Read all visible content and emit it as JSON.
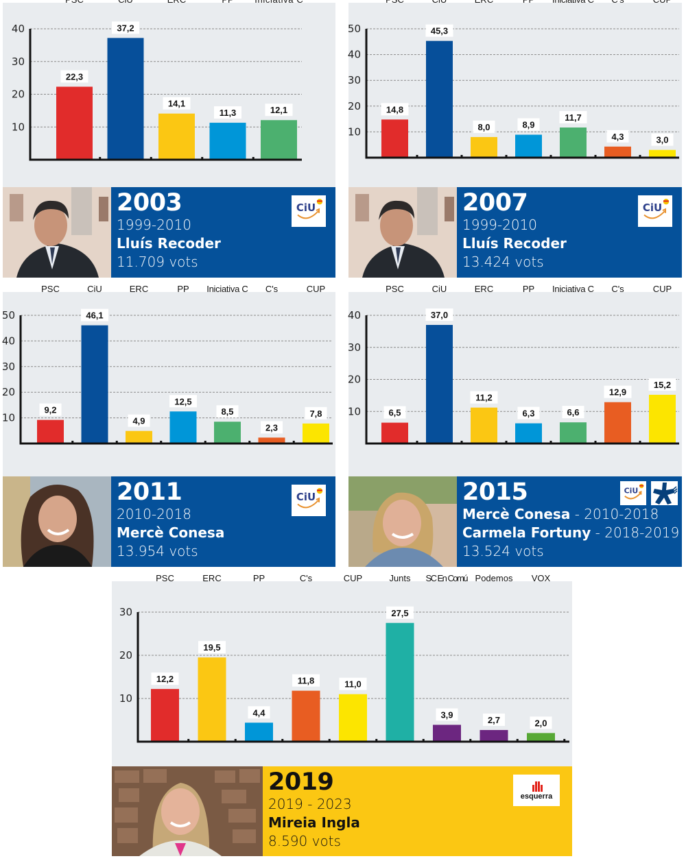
{
  "colors": {
    "PSC": "#e12c2b",
    "CiU": "#064f9a",
    "ERC": "#fbc713",
    "PP": "#0096d8",
    "Iniciativa C": "#4cb06f",
    "C's": "#e85d22",
    "CUP": "#fce500",
    "Junts": "#1fb0a5",
    "SC En Comú": "#6c2680",
    "Podemos": "#6c2680",
    "VOX": "#57a835",
    "panel_bg": "#e9ecef",
    "ciu_blue": "#05519a",
    "erc_yellow": "#fbc713"
  },
  "chart_data": [
    {
      "type": "bar",
      "title": "2003",
      "categories": [
        "PSC",
        "CiU",
        "ERC",
        "PP",
        "Iniciativa C"
      ],
      "values": [
        22.3,
        37.2,
        14.1,
        11.3,
        12.1
      ],
      "value_labels": [
        "22,3",
        "37,2",
        "14,1",
        "11,3",
        "12,1"
      ],
      "yticks": [
        "10",
        "20",
        "30",
        "40"
      ],
      "ylim": [
        0,
        40
      ],
      "grid": true,
      "xlabel": "",
      "ylabel": ""
    },
    {
      "type": "bar",
      "title": "2007",
      "categories": [
        "PSC",
        "CiU",
        "ERC",
        "PP",
        "Iniciativa C",
        "C's",
        "CUP"
      ],
      "values": [
        14.8,
        45.3,
        8.0,
        8.9,
        11.7,
        4.3,
        3.0
      ],
      "value_labels": [
        "14,8",
        "45,3",
        "8,0",
        "8,9",
        "11,7",
        "4,3",
        "3,0"
      ],
      "yticks": [
        "10",
        "20",
        "30",
        "40",
        "50"
      ],
      "ylim": [
        0,
        50
      ],
      "grid": true,
      "xlabel": "",
      "ylabel": ""
    },
    {
      "type": "bar",
      "title": "2011",
      "categories": [
        "PSC",
        "CiU",
        "ERC",
        "PP",
        "Iniciativa C",
        "C's",
        "CUP"
      ],
      "values": [
        9.2,
        46.1,
        4.9,
        12.5,
        8.5,
        2.3,
        7.8
      ],
      "value_labels": [
        "9,2",
        "46,1",
        "4,9",
        "12,5",
        "8,5",
        "2,3",
        "7,8"
      ],
      "yticks": [
        "10",
        "20",
        "30",
        "40",
        "50"
      ],
      "ylim": [
        0,
        50
      ],
      "grid": true,
      "xlabel": "",
      "ylabel": ""
    },
    {
      "type": "bar",
      "title": "2015",
      "categories": [
        "PSC",
        "CiU",
        "ERC",
        "PP",
        "Iniciativa C",
        "C's",
        "CUP"
      ],
      "values": [
        6.5,
        37.0,
        11.2,
        6.3,
        6.6,
        12.9,
        15.2
      ],
      "value_labels": [
        "6,5",
        "37,0",
        "11,2",
        "6,3",
        "6,6",
        "12,9",
        "15,2"
      ],
      "yticks": [
        "10",
        "20",
        "30",
        "40"
      ],
      "ylim": [
        0,
        40
      ],
      "grid": true,
      "xlabel": "",
      "ylabel": ""
    },
    {
      "type": "bar",
      "title": "2019",
      "categories": [
        "PSC",
        "ERC",
        "PP",
        "C's",
        "CUP",
        "Junts",
        "SC En Comú",
        "Podemos",
        "VOX"
      ],
      "values": [
        12.2,
        19.5,
        4.4,
        11.8,
        11.0,
        27.5,
        3.9,
        2.7,
        2.0
      ],
      "value_labels": [
        "12,2",
        "19,5",
        "4,4",
        "11,8",
        "11,0",
        "27,5",
        "3,9",
        "2,7",
        "2,0"
      ],
      "yticks": [
        "10",
        "20",
        "30"
      ],
      "ylim": [
        0,
        30
      ],
      "grid": true,
      "xlabel": "",
      "ylabel": ""
    }
  ],
  "panels": [
    {
      "year": "2003",
      "period": "1999-2010",
      "mayor": "Lluís Recoder",
      "votes": "11.709 vots",
      "logos": [
        "CiU"
      ]
    },
    {
      "year": "2007",
      "period": "1999-2010",
      "mayor": "Lluís Recoder",
      "votes": "13.424 vots",
      "logos": [
        "CiU"
      ]
    },
    {
      "year": "2011",
      "period": "2010-2018",
      "mayor": "Mercè Conesa",
      "votes": "13.954 vots",
      "logos": [
        "CiU"
      ]
    },
    {
      "year": "2015",
      "mayor1": "Mercè Conesa",
      "period1": " - 2010-2018",
      "mayor2": "Carmela Fortuny",
      "period2": " - 2018-2019",
      "votes": "13.524 vots",
      "logos": [
        "CiU",
        "PDeCAT"
      ]
    },
    {
      "year": "2019",
      "period": "2019 - 2023",
      "mayor": "Mireia Ingla",
      "votes": "8.590 vots",
      "logos": [
        "esquerra"
      ]
    }
  ],
  "logo_text": {
    "ciu": "CiU",
    "esquerra": "esquerra"
  }
}
